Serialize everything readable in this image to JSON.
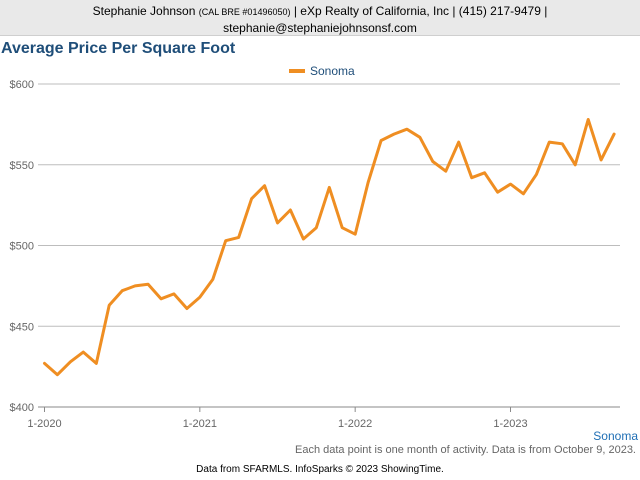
{
  "header": {
    "agent_name": "Stephanie Johnson",
    "bre": "(CAL BRE #01496050)",
    "company_phone": "| eXp Realty of California, Inc | (415) 217-9479 |",
    "email": "stephanie@stephaniejohnsonsf.com"
  },
  "note": "Each data point is one month of activity. Data is from October 9, 2023.",
  "footer": "Data from SFARMLS. InfoSparks © 2023 ShowingTime.",
  "colors": {
    "series": "#ef8e22",
    "title": "#1f4e79",
    "grid": "#bdbdbd"
  },
  "chart_data": {
    "type": "line",
    "title": "Average Price Per Square Foot",
    "xlabel": "",
    "ylabel": "",
    "ylim": [
      400,
      600
    ],
    "y_ticks": [
      "$400",
      "$450",
      "$500",
      "$550",
      "$600"
    ],
    "x_ticks": [
      "1-2020",
      "1-2021",
      "1-2022",
      "1-2023"
    ],
    "legend": "top-center",
    "grid": true,
    "end_label": "Sonoma",
    "series": [
      {
        "name": "Sonoma",
        "color": "#ef8e22",
        "x": [
          "2020-01",
          "2020-02",
          "2020-03",
          "2020-04",
          "2020-05",
          "2020-06",
          "2020-07",
          "2020-08",
          "2020-09",
          "2020-10",
          "2020-11",
          "2020-12",
          "2021-01",
          "2021-02",
          "2021-03",
          "2021-04",
          "2021-05",
          "2021-06",
          "2021-07",
          "2021-08",
          "2021-09",
          "2021-10",
          "2021-11",
          "2021-12",
          "2022-01",
          "2022-02",
          "2022-03",
          "2022-04",
          "2022-05",
          "2022-06",
          "2022-07",
          "2022-08",
          "2022-09",
          "2022-10",
          "2022-11",
          "2022-12",
          "2023-01",
          "2023-02",
          "2023-03",
          "2023-04",
          "2023-05",
          "2023-06",
          "2023-07",
          "2023-08",
          "2023-09"
        ],
        "values": [
          427,
          420,
          428,
          434,
          427,
          463,
          472,
          475,
          476,
          467,
          470,
          461,
          468,
          479,
          503,
          505,
          529,
          537,
          514,
          522,
          504,
          511,
          536,
          511,
          507,
          539,
          565,
          569,
          572,
          567,
          552,
          546,
          564,
          542,
          545,
          533,
          538,
          532,
          544,
          564,
          563,
          550,
          578,
          553,
          569
        ]
      }
    ]
  }
}
